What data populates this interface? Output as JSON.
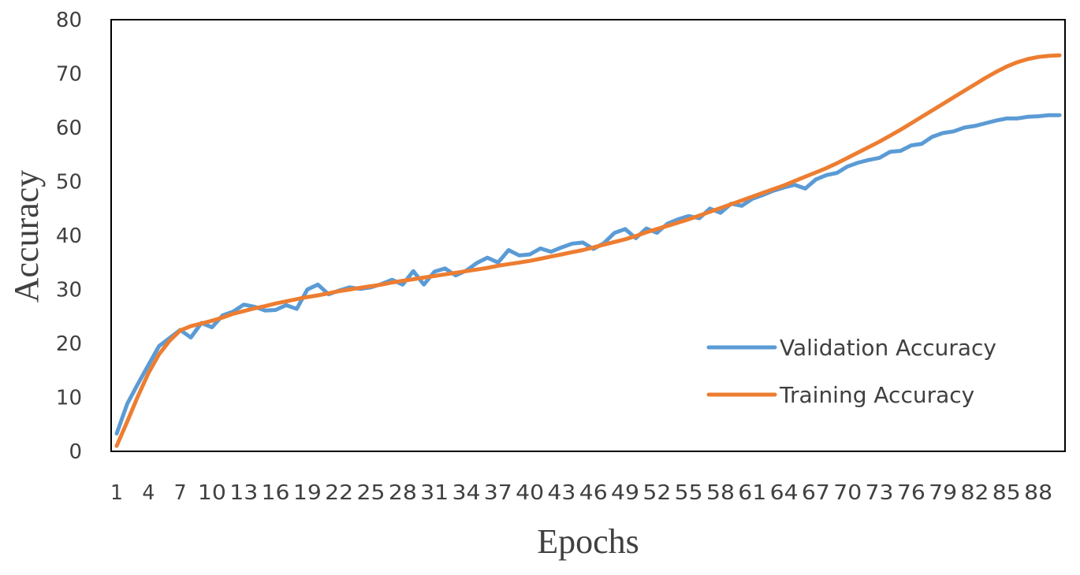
{
  "chart_data": {
    "type": "line",
    "xlabel": "Epochs",
    "ylabel": "Accuracy",
    "ylim": [
      0,
      80
    ],
    "yticks": [
      0,
      10,
      20,
      30,
      40,
      50,
      60,
      70,
      80
    ],
    "xlim": [
      1,
      90
    ],
    "xticks": [
      1,
      4,
      7,
      10,
      13,
      16,
      19,
      22,
      25,
      28,
      31,
      34,
      37,
      40,
      43,
      46,
      49,
      52,
      55,
      58,
      61,
      64,
      67,
      70,
      73,
      76,
      79,
      82,
      85,
      88
    ],
    "grid": false,
    "legend_position": "right",
    "series": [
      {
        "name": "Validation Accuracy",
        "color": "#5b9bd5",
        "values": [
          3.3,
          8.8,
          12.5,
          16.0,
          19.5,
          21.0,
          22.5,
          21.1,
          23.8,
          23.0,
          25.2,
          25.9,
          27.2,
          26.8,
          26.1,
          26.2,
          27.1,
          26.4,
          30.0,
          30.9,
          29.1,
          29.8,
          30.4,
          30.1,
          30.4,
          31.0,
          31.8,
          30.9,
          33.4,
          30.9,
          33.3,
          33.9,
          32.6,
          33.5,
          34.9,
          35.9,
          35.0,
          37.3,
          36.3,
          36.5,
          37.6,
          37.0,
          37.8,
          38.5,
          38.7,
          37.5,
          38.6,
          40.5,
          41.2,
          39.5,
          41.3,
          40.5,
          42.2,
          43.0,
          43.6,
          43.2,
          45.0,
          44.2,
          45.9,
          45.5,
          46.8,
          47.5,
          48.3,
          48.9,
          49.4,
          48.7,
          50.4,
          51.2,
          51.6,
          52.8,
          53.5,
          54.0,
          54.4,
          55.5,
          55.7,
          56.7,
          57.0,
          58.3,
          59.0,
          59.3,
          60.0,
          60.3,
          60.8,
          61.3,
          61.7,
          61.7,
          62.0,
          62.1,
          62.3,
          62.3
        ]
      },
      {
        "name": "Training Accuracy",
        "color": "#ed7d31",
        "values": [
          1.0,
          5.5,
          10.2,
          14.5,
          18.0,
          20.5,
          22.4,
          23.2,
          23.7,
          24.2,
          24.8,
          25.5,
          26.0,
          26.5,
          26.9,
          27.4,
          27.8,
          28.2,
          28.6,
          28.9,
          29.3,
          29.7,
          30.0,
          30.3,
          30.6,
          30.9,
          31.3,
          31.6,
          31.9,
          32.2,
          32.5,
          32.8,
          33.1,
          33.4,
          33.7,
          34.0,
          34.4,
          34.7,
          35.0,
          35.3,
          35.7,
          36.1,
          36.5,
          36.9,
          37.3,
          37.8,
          38.3,
          38.8,
          39.3,
          39.9,
          40.6,
          41.2,
          41.8,
          42.4,
          43.0,
          43.7,
          44.4,
          45.1,
          45.8,
          46.5,
          47.2,
          47.9,
          48.6,
          49.3,
          50.1,
          50.9,
          51.7,
          52.5,
          53.4,
          54.4,
          55.4,
          56.4,
          57.4,
          58.5,
          59.6,
          60.8,
          62.0,
          63.2,
          64.4,
          65.6,
          66.8,
          68.0,
          69.2,
          70.3,
          71.3,
          72.1,
          72.7,
          73.1,
          73.3,
          73.4
        ]
      }
    ]
  }
}
